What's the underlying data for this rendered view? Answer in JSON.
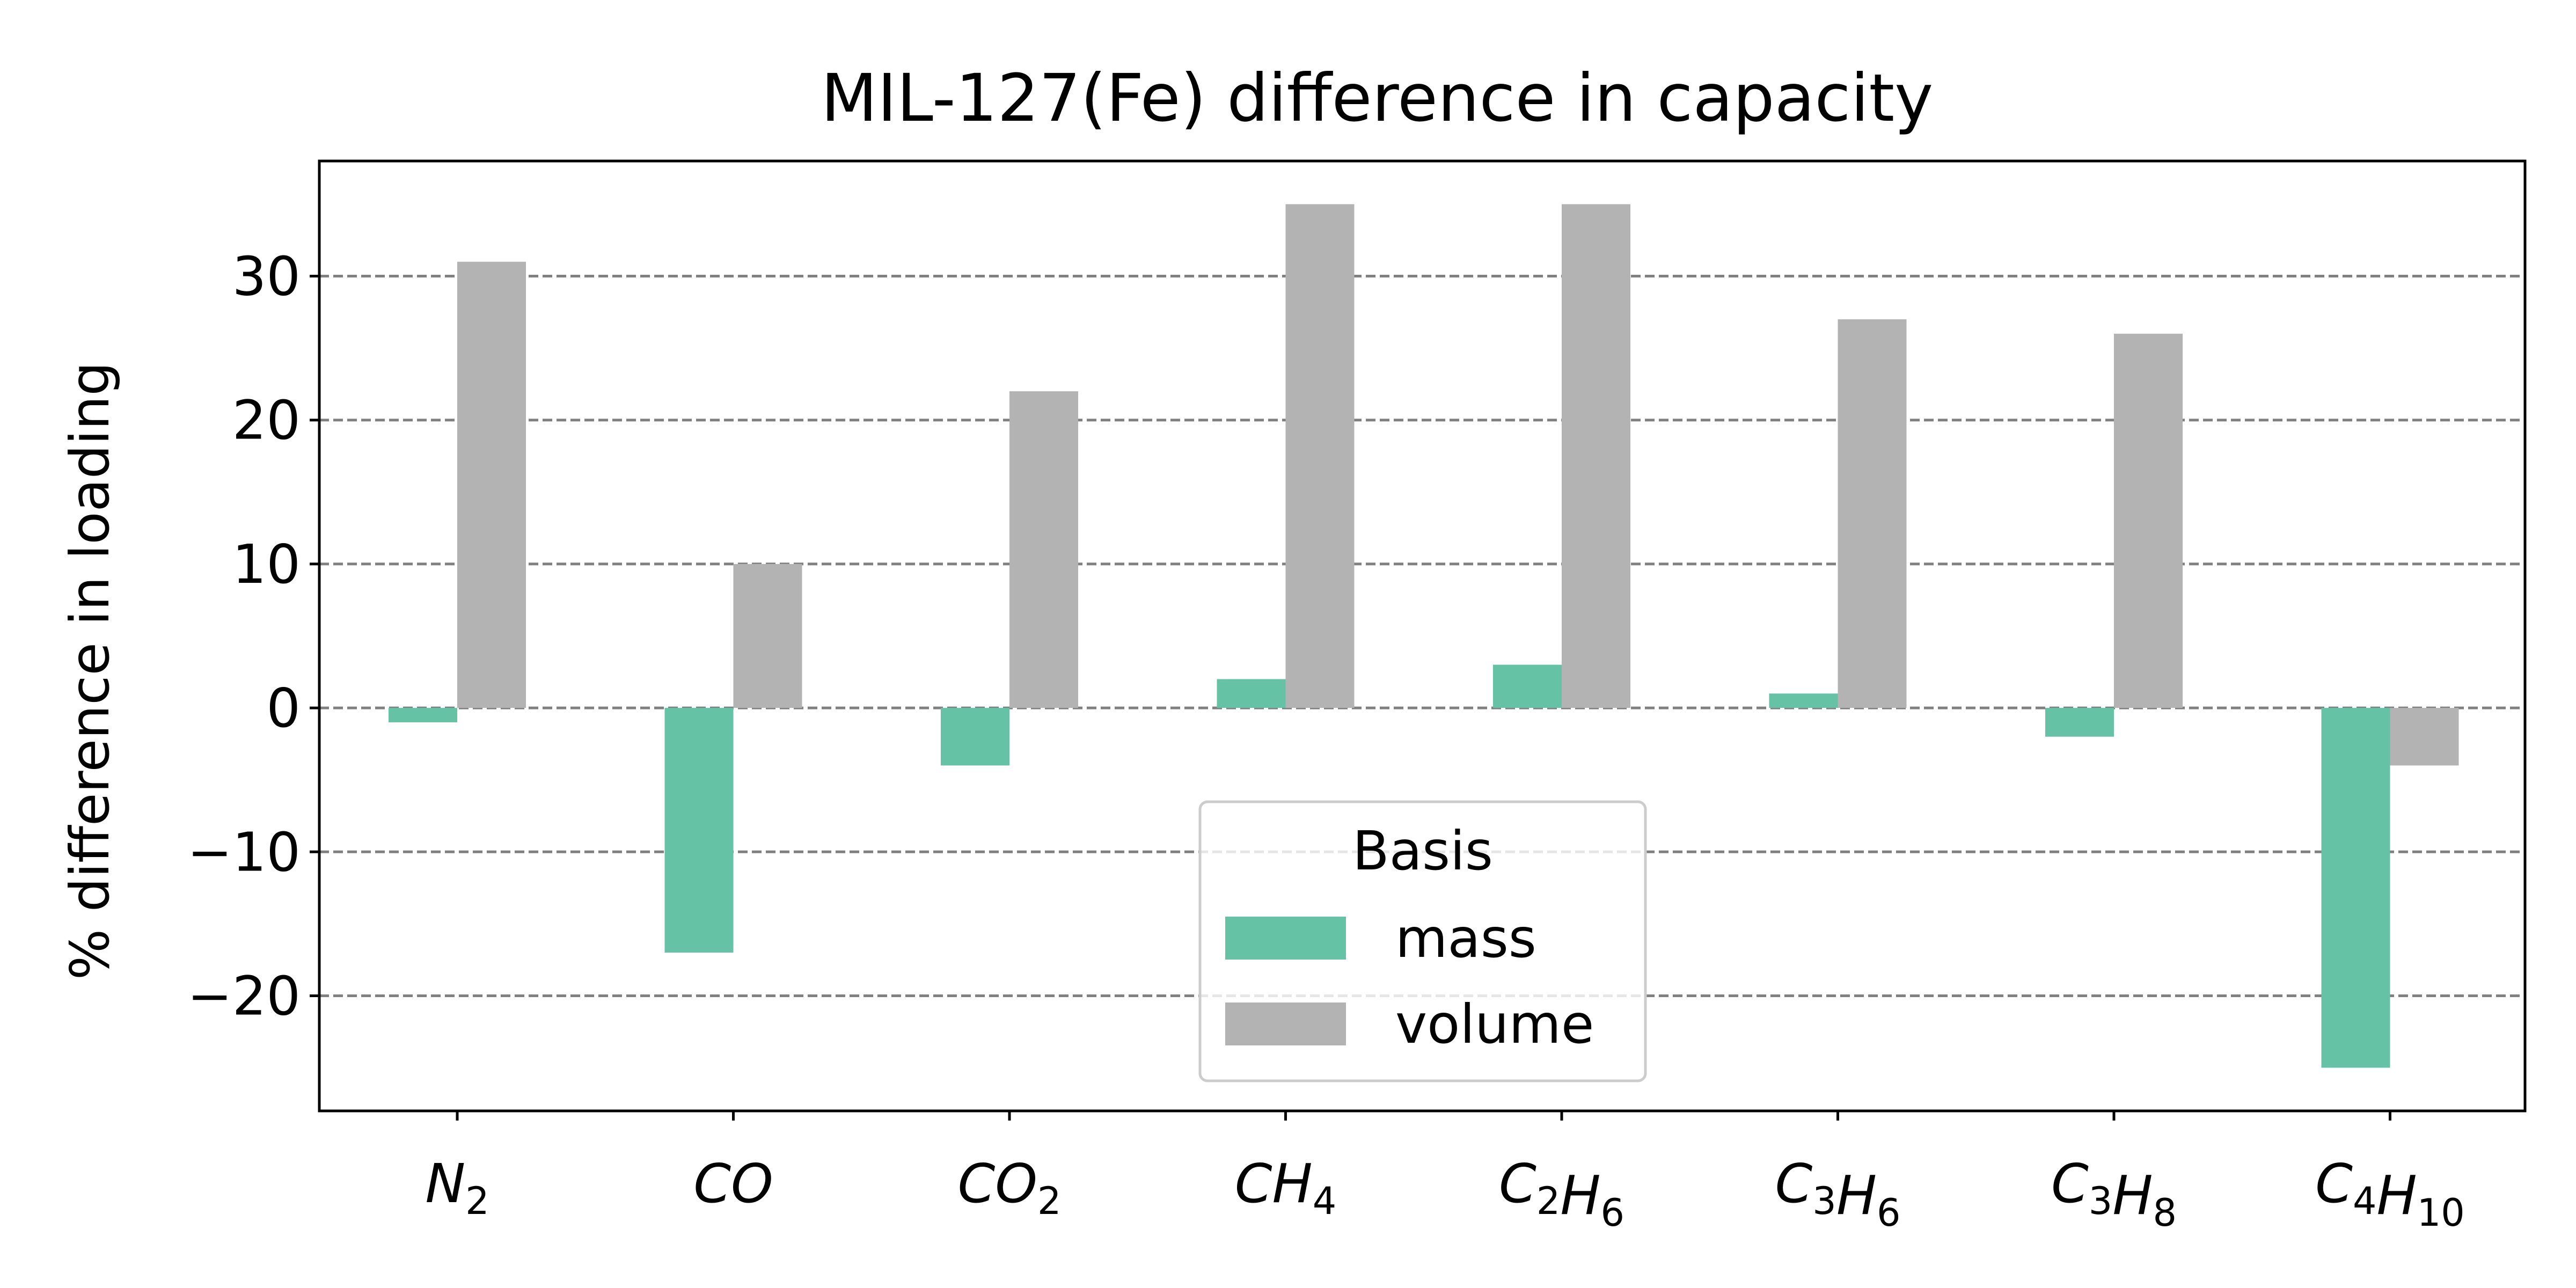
{
  "chart_data": {
    "type": "bar",
    "title": "MIL-127(Fe) difference in capacity",
    "xlabel": "",
    "ylabel": "% difference in loading",
    "categories": [
      {
        "base": "N",
        "sub": "2"
      },
      {
        "base": "CO",
        "sub": ""
      },
      {
        "base": "CO",
        "sub": "2"
      },
      {
        "base": "CH",
        "sub": "4"
      },
      {
        "parts": [
          {
            "t": "C",
            "s": "2"
          },
          {
            "t": "H",
            "s": "6"
          }
        ]
      },
      {
        "parts": [
          {
            "t": "C",
            "s": "3"
          },
          {
            "t": "H",
            "s": "6"
          }
        ]
      },
      {
        "parts": [
          {
            "t": "C",
            "s": "3"
          },
          {
            "t": "H",
            "s": "8"
          }
        ]
      },
      {
        "parts": [
          {
            "t": "C",
            "s": "4"
          },
          {
            "t": "H",
            "s": "10"
          }
        ]
      }
    ],
    "series": [
      {
        "name": "mass",
        "color": "#66c2a5",
        "values": [
          -1,
          -17,
          -4,
          2,
          3,
          1,
          -2,
          -25
        ]
      },
      {
        "name": "volume",
        "color": "#b3b3b3",
        "values": [
          31,
          10,
          22,
          35,
          35,
          27,
          26,
          -4
        ]
      }
    ],
    "ylim": [
      -28,
      38
    ],
    "yticks": [
      -20,
      -10,
      0,
      10,
      20,
      30
    ],
    "ytick_labels": [
      "−20",
      "−10",
      "0",
      "10",
      "20",
      "30"
    ],
    "grid": "horizontal dashed",
    "legend": {
      "title": "Basis",
      "placement": "lower-center"
    }
  }
}
